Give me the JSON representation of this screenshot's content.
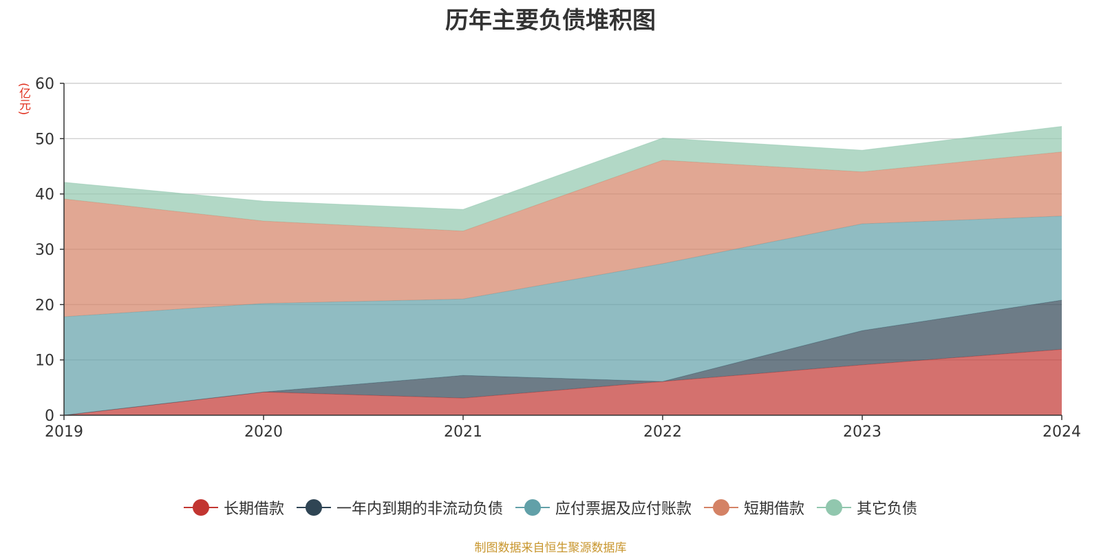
{
  "chart_data": {
    "type": "area",
    "stacked": true,
    "title": "历年主要负债堆积图",
    "unit_label": "(亿元)",
    "x": [
      "2019",
      "2020",
      "2021",
      "2022",
      "2023",
      "2024"
    ],
    "ylim": [
      0,
      60
    ],
    "yticks": [
      "0",
      "10",
      "20",
      "30",
      "40",
      "50",
      "60"
    ],
    "grid": true,
    "legend_position": "bottom",
    "series": [
      {
        "name": "长期借款",
        "color": "#c23531",
        "values": [
          0,
          4.2,
          3.1,
          6.1,
          9.1,
          11.9
        ]
      },
      {
        "name": "一年内到期的非流动负债",
        "color": "#2f4554",
        "values": [
          0,
          0,
          4.1,
          0,
          6.2,
          8.9
        ]
      },
      {
        "name": "应付票据及应付账款",
        "color": "#61a0a8",
        "values": [
          17.8,
          16.0,
          13.8,
          21.3,
          19.3,
          15.2
        ]
      },
      {
        "name": "短期借款",
        "color": "#d48265",
        "values": [
          21.3,
          14.9,
          12.3,
          18.7,
          9.4,
          11.6
        ]
      },
      {
        "name": "其它负债",
        "color": "#91c7ae",
        "values": [
          3.0,
          3.6,
          3.9,
          4.0,
          3.9,
          4.6
        ]
      }
    ]
  },
  "source_note": "制图数据来自恒生聚源数据库"
}
